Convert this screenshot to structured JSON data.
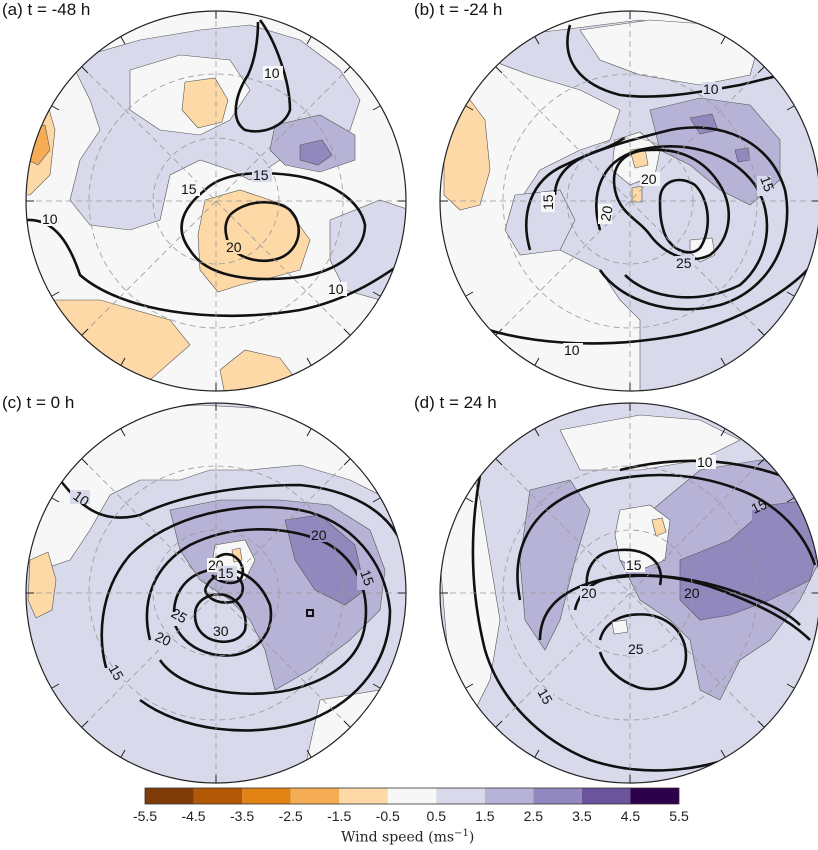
{
  "panels": [
    {
      "id": "a",
      "title": "(a) t = -48 h",
      "contour_labels": [
        "10",
        "15",
        "15",
        "20",
        "10",
        "10"
      ]
    },
    {
      "id": "b",
      "title": "(b) t = -24 h",
      "contour_labels": [
        "10",
        "15",
        "20",
        "20",
        "15",
        "25",
        "10"
      ]
    },
    {
      "id": "c",
      "title": "(c) t = 0 h",
      "contour_labels": [
        "10",
        "20",
        "15",
        "20",
        "15",
        "25",
        "30",
        "20",
        "15"
      ]
    },
    {
      "id": "d",
      "title": "(d) t = 24 h",
      "contour_labels": [
        "10",
        "15",
        "15",
        "20",
        "20",
        "25",
        "15"
      ]
    }
  ],
  "colorbar": {
    "ticks": [
      "-5.5",
      "-4.5",
      "-3.5",
      "-2.5",
      "-1.5",
      "-0.5",
      "0.5",
      "1.5",
      "2.5",
      "3.5",
      "4.5",
      "5.5"
    ],
    "colors": [
      "#7f3b08",
      "#b35806",
      "#e08214",
      "#f5ad55",
      "#fdd9a8",
      "#f7f7f7",
      "#d8daeb",
      "#b7b3d6",
      "#9188bd",
      "#6a549c",
      "#2d004b"
    ],
    "title": "Wind speed (ms",
    "title_sup": "−1",
    "title_close": ")"
  },
  "style": {
    "negative_fill": "#fdd9a8",
    "positive_fill_1": "#d8daeb",
    "positive_fill_2": "#b7b3d6",
    "positive_fill_3": "#9188bd",
    "background_fill": "#f7f7f7"
  }
}
